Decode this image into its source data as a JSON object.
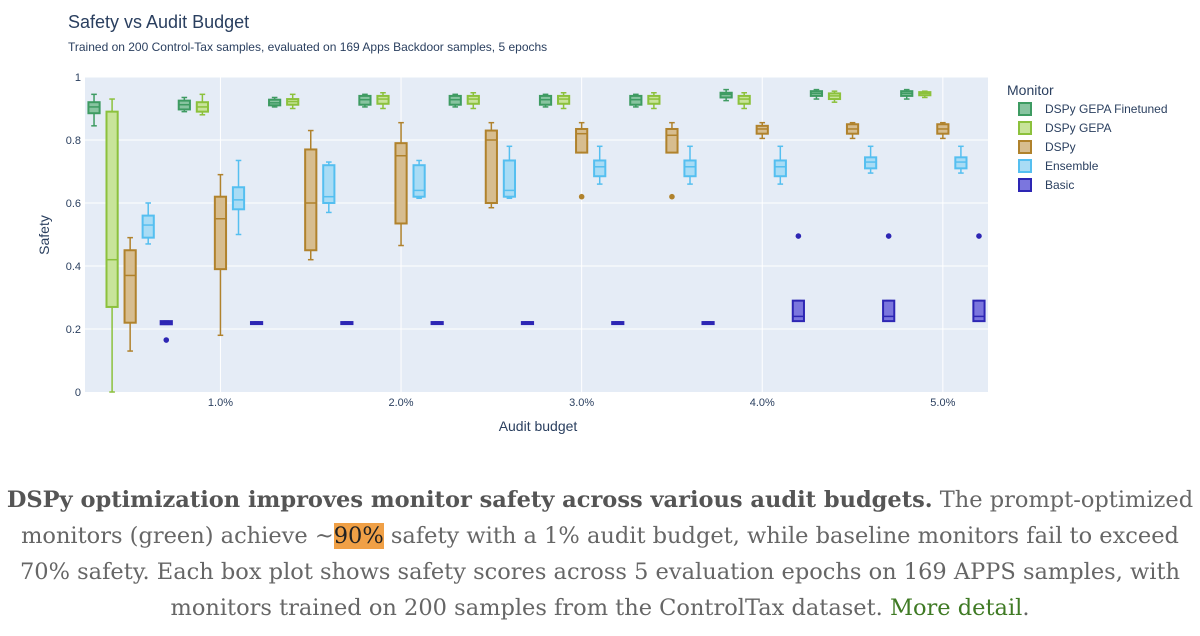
{
  "chart_data": {
    "type": "box",
    "title": "Safety vs Audit Budget",
    "subtitle": "Trained on 200 Control-Tax samples, evaluated on 169 Apps Backdoor samples, 5 epochs",
    "xlabel": "Audit budget",
    "ylabel": "Safety",
    "ylim": [
      0,
      1
    ],
    "yticks": [
      "0",
      "0.2",
      "0.4",
      "0.6",
      "0.8",
      "1"
    ],
    "categories": [
      "0.5%",
      "1.0%",
      "1.5%",
      "2.0%",
      "2.5%",
      "3.0%",
      "3.5%",
      "4.0%",
      "4.5%",
      "5.0%"
    ],
    "tick_labels": [
      "1.0%",
      "2.0%",
      "3.0%",
      "4.0%",
      "5.0%"
    ],
    "legend_title": "Monitor",
    "series": [
      {
        "name": "DSPy GEPA Finetuned",
        "fill": "#88c4a0",
        "stroke": "#3e9b62",
        "boxes": [
          {
            "min": 0.845,
            "q1": 0.885,
            "median": 0.905,
            "q3": 0.92,
            "max": 0.945
          },
          {
            "min": 0.89,
            "q1": 0.897,
            "median": 0.912,
            "q3": 0.925,
            "max": 0.935
          },
          {
            "min": 0.905,
            "q1": 0.91,
            "median": 0.918,
            "q3": 0.928,
            "max": 0.935
          },
          {
            "min": 0.905,
            "q1": 0.912,
            "median": 0.928,
            "q3": 0.94,
            "max": 0.945
          },
          {
            "min": 0.905,
            "q1": 0.912,
            "median": 0.928,
            "q3": 0.94,
            "max": 0.945
          },
          {
            "min": 0.905,
            "q1": 0.912,
            "median": 0.928,
            "q3": 0.94,
            "max": 0.945
          },
          {
            "min": 0.905,
            "q1": 0.912,
            "median": 0.928,
            "q3": 0.94,
            "max": 0.945
          },
          {
            "min": 0.925,
            "q1": 0.935,
            "median": 0.945,
            "q3": 0.95,
            "max": 0.96
          },
          {
            "min": 0.93,
            "q1": 0.94,
            "median": 0.948,
            "q3": 0.955,
            "max": 0.96
          },
          {
            "min": 0.93,
            "q1": 0.94,
            "median": 0.948,
            "q3": 0.955,
            "max": 0.96
          }
        ]
      },
      {
        "name": "DSPy GEPA",
        "fill": "#c8e49a",
        "stroke": "#8cc13c",
        "boxes": [
          {
            "min": 0.0,
            "q1": 0.27,
            "median": 0.42,
            "q3": 0.89,
            "max": 0.93
          },
          {
            "min": 0.88,
            "q1": 0.89,
            "median": 0.905,
            "q3": 0.92,
            "max": 0.945
          },
          {
            "min": 0.9,
            "q1": 0.912,
            "median": 0.922,
            "q3": 0.93,
            "max": 0.945
          },
          {
            "min": 0.9,
            "q1": 0.915,
            "median": 0.93,
            "q3": 0.94,
            "max": 0.95
          },
          {
            "min": 0.9,
            "q1": 0.915,
            "median": 0.93,
            "q3": 0.94,
            "max": 0.95
          },
          {
            "min": 0.9,
            "q1": 0.915,
            "median": 0.93,
            "q3": 0.94,
            "max": 0.95
          },
          {
            "min": 0.9,
            "q1": 0.915,
            "median": 0.93,
            "q3": 0.94,
            "max": 0.95
          },
          {
            "min": 0.9,
            "q1": 0.915,
            "median": 0.93,
            "q3": 0.94,
            "max": 0.95
          },
          {
            "min": 0.92,
            "q1": 0.93,
            "median": 0.94,
            "q3": 0.948,
            "max": 0.955
          },
          {
            "min": 0.935,
            "q1": 0.942,
            "median": 0.948,
            "q3": 0.952,
            "max": 0.955
          }
        ]
      },
      {
        "name": "DSPy",
        "fill": "#d7bd8f",
        "stroke": "#b0822c",
        "boxes": [
          {
            "min": 0.13,
            "q1": 0.22,
            "median": 0.37,
            "q3": 0.45,
            "max": 0.49
          },
          {
            "min": 0.18,
            "q1": 0.39,
            "median": 0.55,
            "q3": 0.62,
            "max": 0.69
          },
          {
            "min": 0.42,
            "q1": 0.45,
            "median": 0.6,
            "q3": 0.77,
            "max": 0.83
          },
          {
            "min": 0.465,
            "q1": 0.535,
            "median": 0.75,
            "q3": 0.79,
            "max": 0.855
          },
          {
            "min": 0.585,
            "q1": 0.6,
            "median": 0.8,
            "q3": 0.83,
            "max": 0.855
          },
          {
            "min": 0.76,
            "q1": 0.76,
            "median": 0.82,
            "q3": 0.835,
            "max": 0.855,
            "outliers": [
              0.62
            ]
          },
          {
            "min": 0.76,
            "q1": 0.76,
            "median": 0.815,
            "q3": 0.835,
            "max": 0.855,
            "outliers": [
              0.62
            ]
          },
          {
            "min": 0.805,
            "q1": 0.82,
            "median": 0.835,
            "q3": 0.845,
            "max": 0.855
          },
          {
            "min": 0.805,
            "q1": 0.82,
            "median": 0.835,
            "q3": 0.85,
            "max": 0.855
          },
          {
            "min": 0.805,
            "q1": 0.82,
            "median": 0.835,
            "q3": 0.85,
            "max": 0.855
          }
        ]
      },
      {
        "name": "Ensemble",
        "fill": "#a9dcf5",
        "stroke": "#55bff0",
        "boxes": [
          {
            "min": 0.47,
            "q1": 0.49,
            "median": 0.53,
            "q3": 0.56,
            "max": 0.6
          },
          {
            "min": 0.5,
            "q1": 0.58,
            "median": 0.61,
            "q3": 0.65,
            "max": 0.735
          },
          {
            "min": 0.57,
            "q1": 0.6,
            "median": 0.62,
            "q3": 0.72,
            "max": 0.73
          },
          {
            "min": 0.615,
            "q1": 0.62,
            "median": 0.64,
            "q3": 0.72,
            "max": 0.735
          },
          {
            "min": 0.615,
            "q1": 0.62,
            "median": 0.64,
            "q3": 0.735,
            "max": 0.78
          },
          {
            "min": 0.66,
            "q1": 0.685,
            "median": 0.715,
            "q3": 0.735,
            "max": 0.78
          },
          {
            "min": 0.66,
            "q1": 0.685,
            "median": 0.715,
            "q3": 0.735,
            "max": 0.78
          },
          {
            "min": 0.66,
            "q1": 0.685,
            "median": 0.715,
            "q3": 0.735,
            "max": 0.78
          },
          {
            "min": 0.695,
            "q1": 0.71,
            "median": 0.73,
            "q3": 0.745,
            "max": 0.78
          },
          {
            "min": 0.695,
            "q1": 0.71,
            "median": 0.73,
            "q3": 0.745,
            "max": 0.78
          }
        ]
      },
      {
        "name": "Basic",
        "fill": "#7b76de",
        "stroke": "#2d26b4",
        "boxes": [
          {
            "min": 0.215,
            "q1": 0.215,
            "median": 0.22,
            "q3": 0.225,
            "max": 0.225,
            "outliers": [
              0.165
            ]
          },
          {
            "min": 0.222,
            "q1": 0.222,
            "median": 0.222,
            "q3": 0.222,
            "max": 0.222
          },
          {
            "min": 0.222,
            "q1": 0.222,
            "median": 0.222,
            "q3": 0.222,
            "max": 0.222
          },
          {
            "min": 0.222,
            "q1": 0.222,
            "median": 0.222,
            "q3": 0.222,
            "max": 0.222
          },
          {
            "min": 0.222,
            "q1": 0.222,
            "median": 0.222,
            "q3": 0.222,
            "max": 0.222
          },
          {
            "min": 0.222,
            "q1": 0.222,
            "median": 0.222,
            "q3": 0.222,
            "max": 0.222
          },
          {
            "min": 0.222,
            "q1": 0.222,
            "median": 0.222,
            "q3": 0.222,
            "max": 0.222
          },
          {
            "min": 0.225,
            "q1": 0.225,
            "median": 0.24,
            "q3": 0.29,
            "max": 0.29,
            "outliers": [
              0.495
            ]
          },
          {
            "min": 0.225,
            "q1": 0.225,
            "median": 0.24,
            "q3": 0.29,
            "max": 0.29,
            "outliers": [
              0.495
            ]
          },
          {
            "min": 0.225,
            "q1": 0.225,
            "median": 0.24,
            "q3": 0.29,
            "max": 0.29,
            "outliers": [
              0.495
            ]
          }
        ]
      }
    ]
  },
  "caption": {
    "lead": "DSPy optimization improves monitor safety across various audit budgets.",
    "part1": " The prompt-optimized monitors (green) achieve ~",
    "highlight": "90%",
    "part2": " safety with a 1% audit budget, while baseline monitors fail to exceed 70% safety. Each box plot shows safety scores across 5 evaluation epochs on 169 APPS samples, with monitors trained on 200 samples from the ControlTax dataset. ",
    "link": "More detail",
    "end": "."
  },
  "colors": {
    "plot_bg": "#e5ecf6",
    "text": "#2a3f5f"
  }
}
